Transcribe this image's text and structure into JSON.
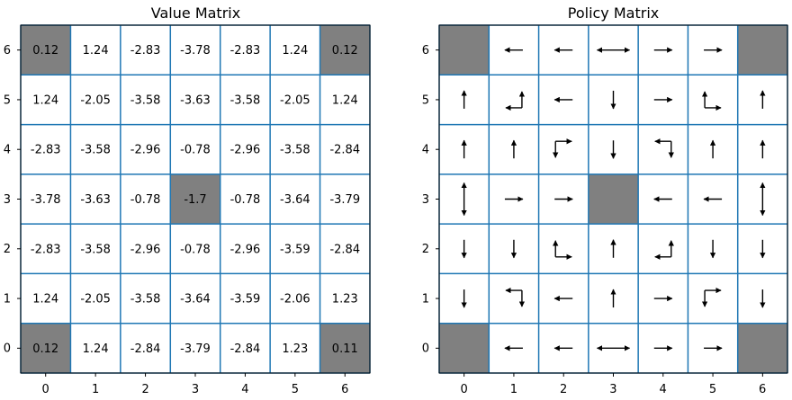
{
  "chart_data": [
    {
      "type": "heatmap",
      "title": "Value Matrix",
      "x_ticks": [
        "0",
        "1",
        "2",
        "3",
        "4",
        "5",
        "6"
      ],
      "y_ticks": [
        "0",
        "1",
        "2",
        "3",
        "4",
        "5",
        "6"
      ],
      "grid_color": "#1f77b4",
      "blocked_color": "#808080",
      "blocked_cells": [
        [
          0,
          0
        ],
        [
          6,
          0
        ],
        [
          3,
          3
        ],
        [
          0,
          6
        ],
        [
          6,
          6
        ]
      ],
      "rows_top_to_bottom": [
        [
          "0.12",
          "1.24",
          "-2.83",
          "-3.78",
          "-2.83",
          "1.24",
          "0.12"
        ],
        [
          "1.24",
          "-2.05",
          "-3.58",
          "-3.63",
          "-3.58",
          "-2.05",
          "1.24"
        ],
        [
          "-2.83",
          "-3.58",
          "-2.96",
          "-0.78",
          "-2.96",
          "-3.58",
          "-2.84"
        ],
        [
          "-3.78",
          "-3.63",
          "-0.78",
          "-1.7",
          "-0.78",
          "-3.64",
          "-3.79"
        ],
        [
          "-2.83",
          "-3.58",
          "-2.96",
          "-0.78",
          "-2.96",
          "-3.59",
          "-2.84"
        ],
        [
          "1.24",
          "-2.05",
          "-3.58",
          "-3.64",
          "-3.59",
          "-2.06",
          "1.23"
        ],
        [
          "0.12",
          "1.24",
          "-2.84",
          "-3.79",
          "-2.84",
          "1.23",
          "0.11"
        ]
      ]
    },
    {
      "type": "heatmap",
      "title": "Policy Matrix",
      "x_ticks": [
        "0",
        "1",
        "2",
        "3",
        "4",
        "5",
        "6"
      ],
      "y_ticks": [
        "0",
        "1",
        "2",
        "3",
        "4",
        "5",
        "6"
      ],
      "grid_color": "#1f77b4",
      "blocked_color": "#808080",
      "blocked_cells": [
        [
          0,
          0
        ],
        [
          6,
          0
        ],
        [
          3,
          3
        ],
        [
          0,
          6
        ],
        [
          6,
          6
        ]
      ],
      "arrows_top_to_bottom": [
        [
          [],
          [
            "left"
          ],
          [
            "left"
          ],
          [
            "left",
            "right"
          ],
          [
            "right"
          ],
          [
            "right"
          ],
          []
        ],
        [
          [
            "up"
          ],
          [
            "left",
            "up"
          ],
          [
            "left"
          ],
          [
            "down"
          ],
          [
            "right"
          ],
          [
            "up",
            "right"
          ],
          [
            "up"
          ]
        ],
        [
          [
            "up"
          ],
          [
            "up"
          ],
          [
            "down",
            "right"
          ],
          [
            "down"
          ],
          [
            "left",
            "down"
          ],
          [
            "up"
          ],
          [
            "up"
          ]
        ],
        [
          [
            "up",
            "down"
          ],
          [
            "right"
          ],
          [
            "right"
          ],
          [],
          [
            "left"
          ],
          [
            "left"
          ],
          [
            "up",
            "down"
          ]
        ],
        [
          [
            "down"
          ],
          [
            "down"
          ],
          [
            "up",
            "right"
          ],
          [
            "up"
          ],
          [
            "left",
            "up"
          ],
          [
            "down"
          ],
          [
            "down"
          ]
        ],
        [
          [
            "down"
          ],
          [
            "left",
            "down"
          ],
          [
            "left"
          ],
          [
            "up"
          ],
          [
            "right"
          ],
          [
            "down",
            "right"
          ],
          [
            "down"
          ]
        ],
        [
          [],
          [
            "left"
          ],
          [
            "left"
          ],
          [
            "left",
            "right"
          ],
          [
            "right"
          ],
          [
            "right"
          ],
          []
        ]
      ]
    }
  ]
}
